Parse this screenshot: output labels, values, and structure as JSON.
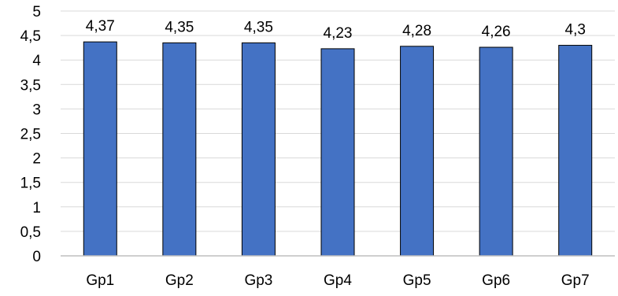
{
  "chart_data": {
    "type": "bar",
    "categories": [
      "Gp1",
      "Gp2",
      "Gp3",
      "Gp4",
      "Gp5",
      "Gp6",
      "Gp7"
    ],
    "values": [
      4.37,
      4.35,
      4.35,
      4.23,
      4.28,
      4.26,
      4.3
    ],
    "data_labels": [
      "4,37",
      "4,35",
      "4,35",
      "4,23",
      "4,28",
      "4,26",
      "4,3"
    ],
    "y_ticks": [
      0,
      0.5,
      1,
      1.5,
      2,
      2.5,
      3,
      3.5,
      4,
      4.5,
      5
    ],
    "y_tick_labels": [
      "0",
      "0,5",
      "1",
      "1,5",
      "2",
      "2,5",
      "3",
      "3,5",
      "4",
      "4,5",
      "5"
    ],
    "ylim": [
      0,
      5
    ],
    "title": "",
    "xlabel": "",
    "ylabel": "",
    "grid": true,
    "legend": false,
    "bar_color": "#4472C4",
    "bar_outline_color": "#000000",
    "grid_color": "#D9D9D9"
  }
}
